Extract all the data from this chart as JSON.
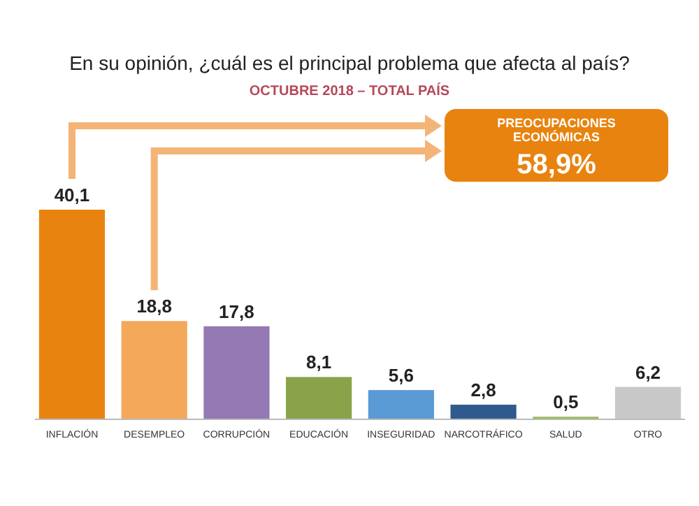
{
  "chart_data": {
    "type": "bar",
    "title": "En su opinión, ¿cuál es el principal problema que afecta al país?",
    "subtitle": "OCTUBRE 2018 – TOTAL PAÍS",
    "categories": [
      "INFLACIÓN",
      "DESEMPLEO",
      "CORRUPCIÓN",
      "EDUCACIÓN",
      "INSEGURIDAD",
      "NARCOTRÁFICO",
      "SALUD",
      "OTRO"
    ],
    "values": [
      40.1,
      18.8,
      17.8,
      8.1,
      5.6,
      2.8,
      0.5,
      6.2
    ],
    "value_labels": [
      "40,1",
      "18,8",
      "17,8",
      "8,1",
      "5,6",
      "2,8",
      "0,5",
      "6,2"
    ],
    "colors": [
      "#e8830f",
      "#f4a85a",
      "#9479b4",
      "#8aa24a",
      "#5b9bd5",
      "#2e5a8e",
      "#9bbb59",
      "#c8c8c8"
    ],
    "annotations": [
      "PREOCUPACIONES ECONÓMICAS",
      "58,9%"
    ]
  }
}
